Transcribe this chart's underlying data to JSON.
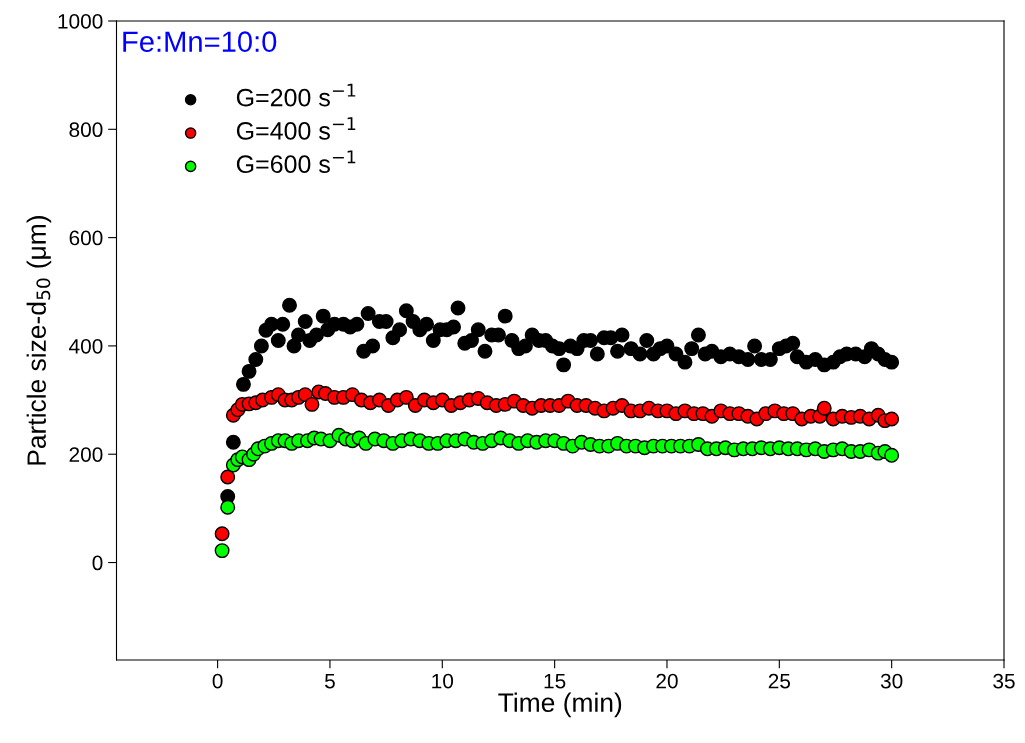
{
  "chart_data": {
    "type": "scatter",
    "xlabel": "Time (min)",
    "ylabel": "Particle size-d$_{50}$ (μm)",
    "xlim": [
      -4.5,
      35
    ],
    "ylim": [
      -180,
      1000
    ],
    "xticks": [
      0,
      5,
      10,
      15,
      20,
      25,
      30,
      35
    ],
    "yticks": [
      0,
      200,
      400,
      600,
      800,
      1000
    ],
    "grid": false,
    "legend": "top left",
    "marker": "circle",
    "annotations": [
      "Fe:Mn=10:0"
    ],
    "series": [
      {
        "name": "G=200 s$^{−1}$",
        "color": "#000000",
        "x": [
          0.45,
          0.7,
          1.15,
          1.4,
          1.7,
          1.95,
          2.15,
          2.4,
          2.7,
          2.9,
          3.2,
          3.4,
          3.6,
          3.9,
          4.1,
          4.4,
          4.7,
          4.9,
          5.2,
          5.6,
          5.9,
          6.2,
          6.5,
          6.7,
          6.9,
          7.2,
          7.5,
          7.8,
          8.1,
          8.4,
          8.7,
          9.0,
          9.3,
          9.6,
          9.9,
          10.2,
          10.5,
          10.7,
          11.0,
          11.3,
          11.6,
          11.9,
          12.2,
          12.5,
          12.8,
          13.1,
          13.4,
          13.7,
          14.0,
          14.3,
          14.6,
          14.9,
          15.2,
          15.4,
          15.7,
          16.0,
          16.3,
          16.6,
          16.9,
          17.2,
          17.5,
          17.8,
          18.0,
          18.4,
          18.8,
          19.1,
          19.4,
          19.7,
          20.0,
          20.4,
          20.8,
          21.1,
          21.4,
          21.7,
          22.0,
          22.4,
          22.8,
          23.2,
          23.6,
          23.9,
          24.2,
          24.6,
          25.0,
          25.3,
          25.6,
          25.8,
          26.2,
          26.6,
          27.0,
          27.4,
          27.7,
          28.0,
          28.4,
          28.8,
          29.1,
          29.4,
          29.7,
          30.0
        ],
        "values": [
          122,
          222,
          329,
          353,
          375,
          400,
          429,
          440,
          410,
          440,
          475,
          400,
          420,
          445,
          410,
          420,
          455,
          430,
          440,
          440,
          435,
          440,
          390,
          460,
          400,
          445,
          445,
          415,
          430,
          465,
          445,
          430,
          440,
          410,
          430,
          430,
          435,
          470,
          405,
          410,
          430,
          390,
          420,
          420,
          455,
          410,
          395,
          400,
          420,
          410,
          410,
          400,
          395,
          365,
          400,
          395,
          410,
          410,
          385,
          415,
          415,
          390,
          420,
          395,
          385,
          410,
          385,
          395,
          400,
          385,
          370,
          395,
          420,
          385,
          390,
          380,
          385,
          380,
          375,
          400,
          375,
          375,
          395,
          400,
          405,
          380,
          370,
          375,
          365,
          370,
          380,
          385,
          385,
          380,
          395,
          385,
          375,
          370
        ]
      },
      {
        "name": "G=400 s$^{−1}$",
        "color": "#ff0000",
        "x": [
          0.2,
          0.45,
          0.7,
          0.9,
          1.1,
          1.4,
          1.7,
          2.0,
          2.4,
          2.7,
          3.0,
          3.3,
          3.6,
          3.9,
          4.2,
          4.5,
          4.8,
          5.2,
          5.6,
          6.0,
          6.4,
          6.8,
          7.2,
          7.6,
          8.0,
          8.4,
          8.8,
          9.2,
          9.6,
          10.0,
          10.4,
          10.8,
          11.2,
          11.6,
          12.0,
          12.4,
          12.8,
          13.2,
          13.6,
          14.0,
          14.4,
          14.8,
          15.2,
          15.6,
          16.0,
          16.4,
          16.8,
          17.2,
          17.6,
          18.0,
          18.4,
          18.8,
          19.2,
          19.6,
          20.0,
          20.4,
          20.8,
          21.2,
          21.6,
          22.0,
          22.4,
          22.8,
          23.2,
          23.6,
          24.0,
          24.4,
          24.8,
          25.2,
          25.6,
          26.0,
          26.4,
          26.8,
          27.0,
          27.4,
          27.8,
          28.2,
          28.6,
          29.0,
          29.4,
          29.7,
          30.0
        ],
        "values": [
          53,
          158,
          272,
          282,
          292,
          293,
          295,
          300,
          305,
          310,
          300,
          300,
          305,
          310,
          292,
          315,
          312,
          305,
          305,
          310,
          300,
          295,
          300,
          290,
          300,
          305,
          290,
          300,
          295,
          300,
          290,
          295,
          300,
          303,
          295,
          290,
          292,
          298,
          290,
          285,
          290,
          290,
          290,
          298,
          290,
          290,
          285,
          280,
          285,
          290,
          280,
          280,
          285,
          280,
          280,
          275,
          280,
          275,
          275,
          270,
          280,
          275,
          275,
          270,
          265,
          275,
          280,
          275,
          275,
          265,
          270,
          270,
          285,
          265,
          270,
          268,
          270,
          265,
          272,
          262,
          265
        ]
      },
      {
        "name": "G=600 s$^{−1}$",
        "color": "#00ff00",
        "x": [
          0.2,
          0.45,
          0.7,
          0.9,
          1.1,
          1.4,
          1.6,
          1.8,
          2.1,
          2.4,
          2.7,
          3.0,
          3.3,
          3.6,
          4.0,
          4.3,
          4.6,
          5.0,
          5.4,
          5.7,
          6.0,
          6.3,
          6.6,
          7.0,
          7.4,
          7.8,
          8.2,
          8.6,
          9.0,
          9.4,
          9.8,
          10.2,
          10.6,
          11.0,
          11.4,
          11.8,
          12.2,
          12.6,
          13.0,
          13.4,
          13.8,
          14.2,
          14.6,
          15.0,
          15.4,
          15.8,
          16.2,
          16.6,
          17.0,
          17.4,
          17.8,
          18.2,
          18.6,
          19.0,
          19.4,
          19.8,
          20.2,
          20.6,
          21.0,
          21.4,
          21.8,
          22.2,
          22.6,
          23.0,
          23.4,
          23.8,
          24.2,
          24.6,
          25.0,
          25.4,
          25.8,
          26.2,
          26.6,
          27.0,
          27.4,
          27.8,
          28.2,
          28.6,
          29.0,
          29.4,
          29.7,
          30.0
        ],
        "values": [
          22,
          102,
          180,
          190,
          195,
          190,
          200,
          210,
          215,
          220,
          225,
          225,
          220,
          225,
          225,
          230,
          228,
          225,
          235,
          228,
          225,
          230,
          220,
          228,
          225,
          220,
          225,
          228,
          225,
          220,
          220,
          225,
          225,
          228,
          222,
          220,
          225,
          230,
          225,
          220,
          225,
          222,
          225,
          225,
          220,
          215,
          222,
          218,
          215,
          215,
          220,
          215,
          215,
          212,
          215,
          215,
          215,
          215,
          215,
          218,
          210,
          210,
          212,
          208,
          210,
          210,
          212,
          210,
          212,
          210,
          210,
          208,
          210,
          205,
          208,
          210,
          205,
          205,
          208,
          202,
          205,
          198
        ]
      }
    ]
  }
}
